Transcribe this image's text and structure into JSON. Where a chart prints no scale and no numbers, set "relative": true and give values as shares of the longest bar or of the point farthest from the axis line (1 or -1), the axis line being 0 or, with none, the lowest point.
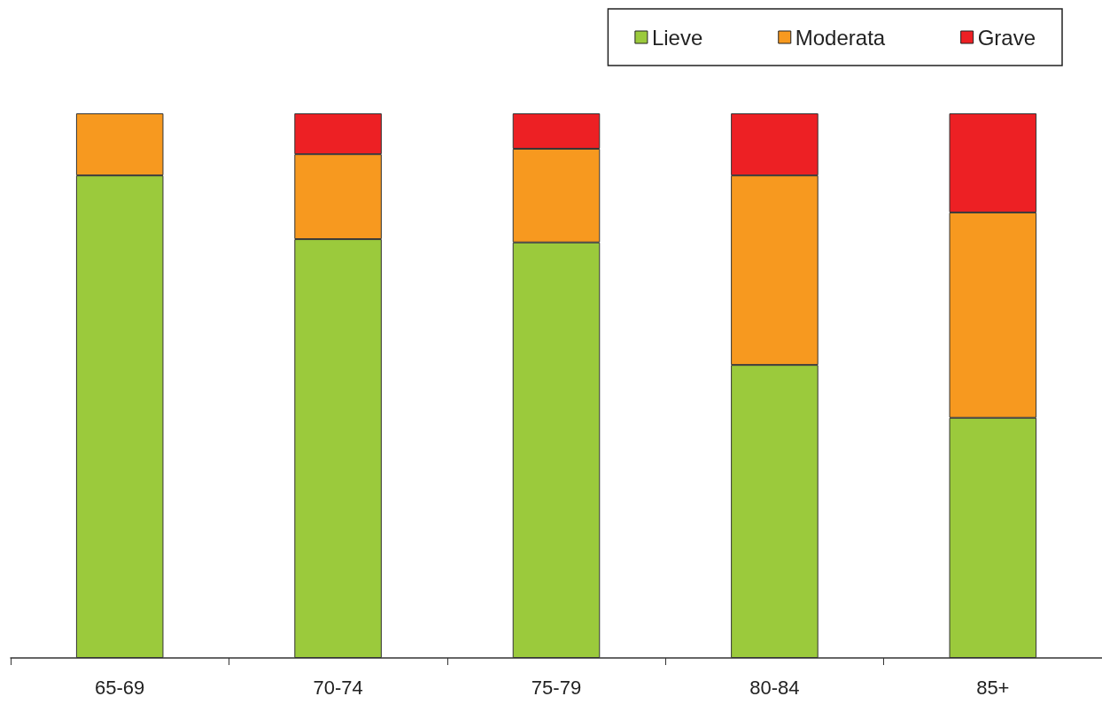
{
  "chart_data": {
    "type": "bar",
    "stacked": true,
    "relative": true,
    "legend": "top right",
    "categories": [
      "65-69",
      "70-74",
      "75-79",
      "80-84",
      "85+"
    ],
    "series": [
      {
        "name": "Lieve",
        "color": "#9bca3c",
        "values": [
          0.886,
          0.769,
          0.763,
          0.538,
          0.441
        ]
      },
      {
        "name": "Moderata",
        "color": "#f7991f",
        "values": [
          0.114,
          0.156,
          0.172,
          0.348,
          0.377
        ]
      },
      {
        "name": "Grave",
        "color": "#ed2024",
        "values": [
          0,
          0.075,
          0.065,
          0.114,
          0.182
        ]
      }
    ]
  }
}
